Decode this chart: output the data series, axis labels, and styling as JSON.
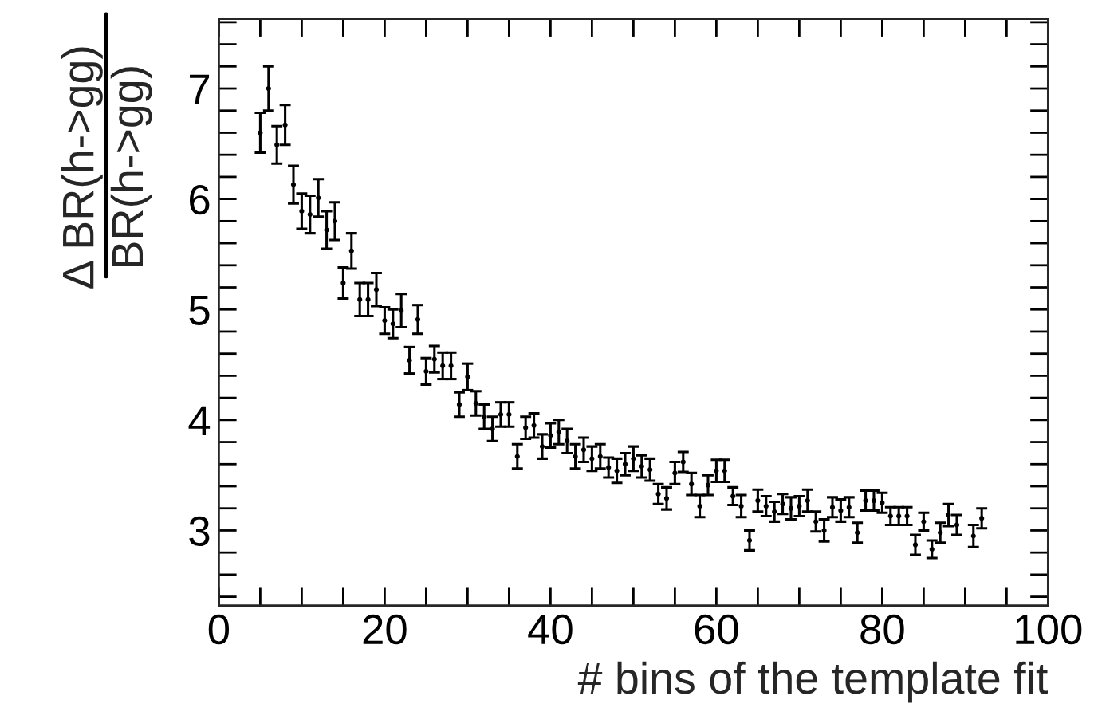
{
  "chart_data": {
    "type": "scatter",
    "xlabel": "# bins of the template fit",
    "ylabel": "Δ BR(h->gg)\nBR(h->gg)",
    "x": [
      5,
      6,
      7,
      8,
      9,
      10,
      11,
      12,
      13,
      14,
      15,
      16,
      17,
      18,
      19,
      20,
      21,
      22,
      23,
      24,
      25,
      26,
      27,
      28,
      29,
      30,
      31,
      32,
      33,
      34,
      35,
      36,
      37,
      38,
      39,
      40,
      41,
      42,
      43,
      44,
      45,
      46,
      47,
      48,
      49,
      50,
      51,
      52,
      53,
      54,
      55,
      56,
      57,
      58,
      59,
      60,
      61,
      62,
      63,
      64,
      65,
      66,
      67,
      68,
      69,
      70,
      71,
      72,
      73,
      74,
      75,
      76,
      77,
      78,
      79,
      80,
      81,
      82,
      83,
      84,
      85,
      86,
      87,
      88,
      89,
      91,
      92
    ],
    "values": [
      6.6,
      7.0,
      6.49,
      6.67,
      6.13,
      5.89,
      5.86,
      6.01,
      5.72,
      5.8,
      5.24,
      5.53,
      5.09,
      5.09,
      5.18,
      4.9,
      4.87,
      4.99,
      4.54,
      4.91,
      4.44,
      4.55,
      4.49,
      4.49,
      4.14,
      4.39,
      4.15,
      4.03,
      3.92,
      4.05,
      4.05,
      3.67,
      3.93,
      3.95,
      3.76,
      3.86,
      3.89,
      3.81,
      3.67,
      3.73,
      3.65,
      3.67,
      3.57,
      3.54,
      3.6,
      3.65,
      3.58,
      3.55,
      3.33,
      3.29,
      3.52,
      3.62,
      3.42,
      3.22,
      3.41,
      3.54,
      3.54,
      3.31,
      3.22,
      2.91,
      3.27,
      3.22,
      3.17,
      3.24,
      3.2,
      3.22,
      3.27,
      3.08,
      3.0,
      3.21,
      3.18,
      3.21,
      2.98,
      3.27,
      3.27,
      3.25,
      3.13,
      3.13,
      3.13,
      2.87,
      3.08,
      2.83,
      2.98,
      3.14,
      3.05,
      2.95,
      3.11
    ],
    "errors": [
      0.18,
      0.2,
      0.17,
      0.18,
      0.17,
      0.16,
      0.17,
      0.17,
      0.17,
      0.17,
      0.14,
      0.16,
      0.15,
      0.15,
      0.15,
      0.12,
      0.13,
      0.15,
      0.12,
      0.13,
      0.12,
      0.12,
      0.12,
      0.12,
      0.11,
      0.12,
      0.11,
      0.11,
      0.11,
      0.11,
      0.11,
      0.11,
      0.1,
      0.11,
      0.11,
      0.11,
      0.11,
      0.11,
      0.11,
      0.11,
      0.11,
      0.11,
      0.09,
      0.11,
      0.1,
      0.11,
      0.1,
      0.1,
      0.09,
      0.1,
      0.1,
      0.09,
      0.1,
      0.1,
      0.09,
      0.1,
      0.1,
      0.08,
      0.1,
      0.09,
      0.1,
      0.09,
      0.09,
      0.09,
      0.1,
      0.09,
      0.1,
      0.09,
      0.1,
      0.09,
      0.1,
      0.09,
      0.09,
      0.09,
      0.09,
      0.09,
      0.08,
      0.08,
      0.08,
      0.09,
      0.08,
      0.08,
      0.09,
      0.1,
      0.09,
      0.1,
      0.09
    ],
    "color": "#000000",
    "marker": "circle",
    "grid": false,
    "legend": false,
    "xlim": [
      0,
      100
    ],
    "ylim": [
      2.32,
      7.63
    ],
    "xticks": [
      0,
      {
        "value": 5,
        "label": null
      },
      {
        "value": 10,
        "label": null
      },
      {
        "value": 15,
        "label": null
      },
      20,
      {
        "value": 25,
        "label": null
      },
      {
        "value": 30,
        "label": null
      },
      {
        "value": 35,
        "label": null
      },
      40,
      {
        "value": 45,
        "label": null
      },
      {
        "value": 50,
        "label": null
      },
      {
        "value": 55,
        "label": null
      },
      60,
      {
        "value": 65,
        "label": null
      },
      {
        "value": 70,
        "label": null
      },
      {
        "value": 75,
        "label": null
      },
      80,
      {
        "value": 85,
        "label": null
      },
      {
        "value": 90,
        "label": null
      },
      {
        "value": 95,
        "label": null
      },
      100
    ],
    "yticks": [
      {
        "value": 2.4,
        "label": null
      },
      {
        "value": 2.6,
        "label": null
      },
      {
        "value": 2.8,
        "label": null
      },
      3,
      {
        "value": 3.2,
        "label": null
      },
      {
        "value": 3.4,
        "label": null
      },
      {
        "value": 3.6,
        "label": null
      },
      {
        "value": 3.8,
        "label": null
      },
      4,
      {
        "value": 4.2,
        "label": null
      },
      {
        "value": 4.4,
        "label": null
      },
      {
        "value": 4.6,
        "label": null
      },
      {
        "value": 4.8,
        "label": null
      },
      5,
      {
        "value": 5.2,
        "label": null
      },
      {
        "value": 5.4,
        "label": null
      },
      {
        "value": 5.6,
        "label": null
      },
      {
        "value": 5.8,
        "label": null
      },
      6,
      {
        "value": 6.2,
        "label": null
      },
      {
        "value": 6.4,
        "label": null
      },
      {
        "value": 6.6,
        "label": null
      },
      {
        "value": 6.8,
        "label": null
      },
      7,
      {
        "value": 7.2,
        "label": null
      },
      {
        "value": 7.4,
        "label": null
      },
      {
        "value": 7.6,
        "label": null
      }
    ]
  }
}
